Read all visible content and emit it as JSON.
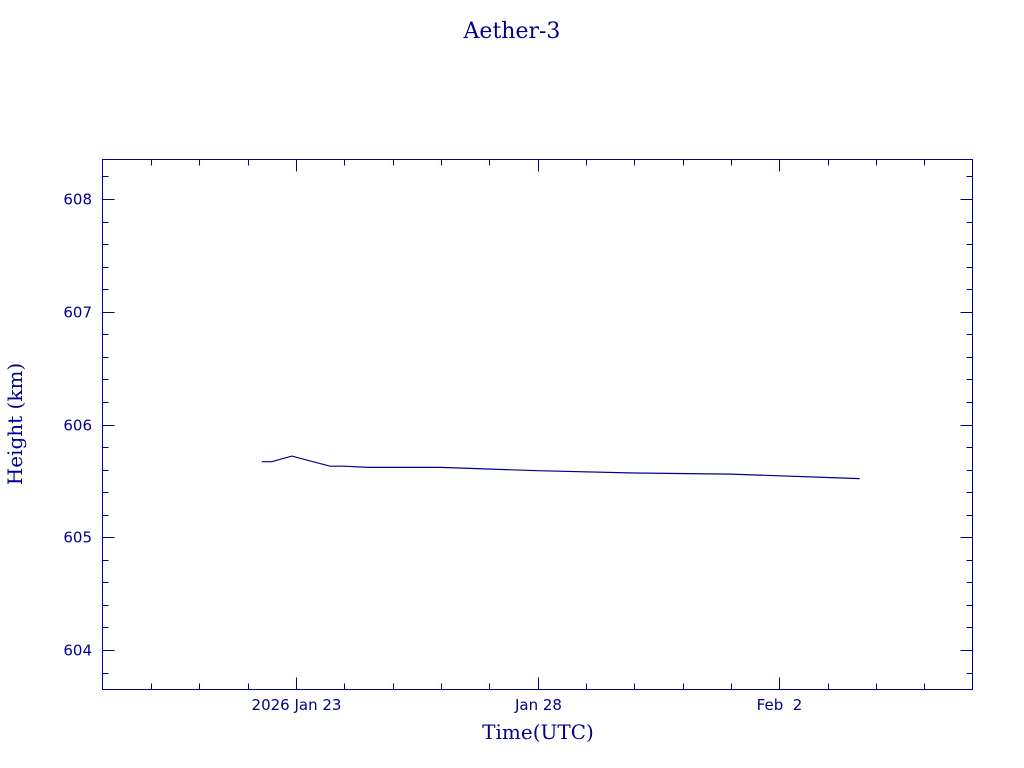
{
  "chart_data": {
    "type": "line",
    "title": "Aether-3",
    "xlabel": "Time(UTC)",
    "ylabel": "Height (km)",
    "x_unit": "date",
    "xlim": [
      "2026-01-19",
      "2026-02-06"
    ],
    "ylim": [
      603.65,
      608.35
    ],
    "x_ticks": [
      {
        "value": "2026-01-23",
        "label": "2026 Jan 23"
      },
      {
        "value": "2026-01-28",
        "label": "Jan 28"
      },
      {
        "value": "2026-02-02",
        "label": "Feb  2"
      }
    ],
    "y_ticks": [
      604,
      605,
      606,
      607,
      608
    ],
    "grid": false,
    "legend": "none",
    "series": [
      {
        "x": [
          "2026-01-22T07:00",
          "2026-01-22T12:00",
          "2026-01-22T22:00",
          "2026-01-23T17:00",
          "2026-01-24T00:00",
          "2026-01-24T12:00",
          "2026-01-26T00:00",
          "2026-01-28T00:00",
          "2026-01-30T00:00",
          "2026-02-01T00:00",
          "2026-02-03T00:00",
          "2026-02-03T16:00"
        ],
        "values": [
          605.67,
          605.67,
          605.72,
          605.63,
          605.63,
          605.62,
          605.62,
          605.59,
          605.57,
          605.56,
          605.53,
          605.52
        ]
      }
    ]
  },
  "colors": {
    "ink": "#00008b",
    "background": "#ffffff"
  }
}
